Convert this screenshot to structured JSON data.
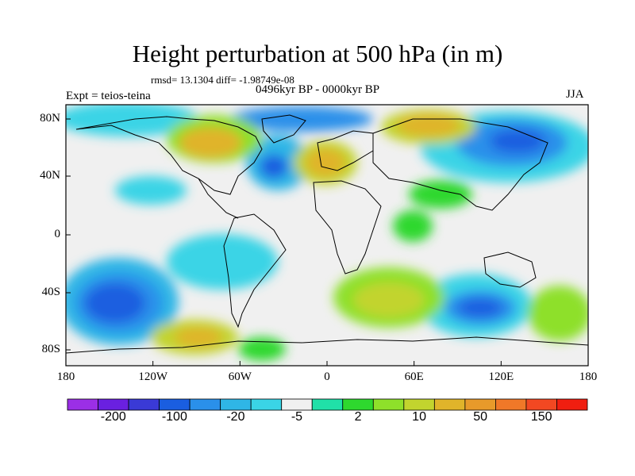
{
  "title": "Height perturbation at 500 hPa (in m)",
  "stats": "rmsd= 13.1304 diff= -1.98749e-08",
  "period": "0496kyr BP - 0000kyr BP",
  "experiment": "Expt = teios-teina",
  "season": "JJA",
  "lat_ticks": [
    "80N",
    "40N",
    "0",
    "40S",
    "80S"
  ],
  "lon_ticks": [
    "180",
    "120W",
    "60W",
    "0",
    "60E",
    "120E",
    "180"
  ],
  "colorbar": {
    "labels": [
      "-200",
      "-100",
      "-20",
      "-5",
      "2",
      "10",
      "50",
      "150"
    ],
    "colors": [
      "#9b2fe6",
      "#6a20e0",
      "#3a3ad6",
      "#1a5ee0",
      "#2a90ea",
      "#2fb6e6",
      "#3ad4e6",
      "#f0f0f0",
      "#20e0a8",
      "#2ed82e",
      "#8ee02a",
      "#c2d42e",
      "#e0b42a",
      "#e89a2a",
      "#f07828",
      "#f24822",
      "#f01e10"
    ]
  },
  "chart_data": {
    "type": "heatmap",
    "title": "Height perturbation at 500 hPa (in m)",
    "xlabel": "",
    "ylabel": "",
    "x_range": [
      -180,
      180
    ],
    "y_range": [
      -90,
      90
    ],
    "levels": [
      -200,
      -100,
      -20,
      -5,
      2,
      10,
      50,
      150
    ],
    "grid": false
  }
}
